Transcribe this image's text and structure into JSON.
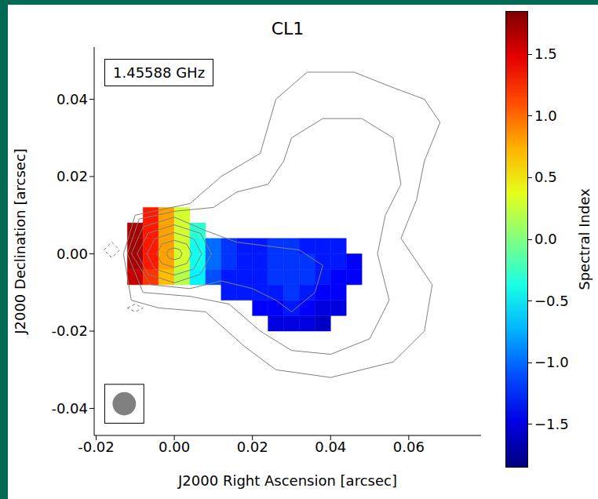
{
  "chart_data": {
    "type": "heatmap",
    "title": "CL1",
    "annotation": "1.45588 GHz",
    "x_label": "J2000 Right Ascension [arcsec]",
    "y_label": "J2000 Declination [arcsec]",
    "xlim": [
      -0.0205,
      0.0785
    ],
    "ylim": [
      -0.047,
      0.0535
    ],
    "xticks": [
      {
        "value": -0.02,
        "label": "-0.02"
      },
      {
        "value": 0,
        "label": "0.00"
      },
      {
        "value": 0.02,
        "label": "0.02"
      },
      {
        "value": 0.04,
        "label": "0.04"
      },
      {
        "value": 0.06,
        "label": "0.06"
      }
    ],
    "yticks": [
      {
        "value": -0.04,
        "label": "-0.04"
      },
      {
        "value": -0.02,
        "label": "-0.02"
      },
      {
        "value": 0,
        "label": "0.00"
      },
      {
        "value": 0.02,
        "label": "0.02"
      },
      {
        "value": 0.04,
        "label": "0.04"
      }
    ],
    "x_edges": [
      -0.012,
      -0.008,
      -0.004,
      0,
      0.004,
      0.008,
      0.012,
      0.016,
      0.02,
      0.024,
      0.028,
      0.032,
      0.036,
      0.04,
      0.044,
      0.048
    ],
    "y_edges": [
      -0.02,
      -0.016,
      -0.012,
      -0.008,
      -0.004,
      0,
      0.004,
      0.008,
      0.012
    ],
    "cells": [
      [
        null,
        null,
        null,
        null,
        null,
        null,
        null,
        null,
        null,
        -1.5,
        -1.5,
        -1.5,
        -1.6,
        null,
        null
      ],
      [
        null,
        null,
        null,
        null,
        null,
        null,
        null,
        null,
        -1.4,
        -1.4,
        -1.3,
        -1.4,
        -1.5,
        -1.5,
        null
      ],
      [
        null,
        null,
        null,
        null,
        null,
        null,
        -1.3,
        -1.3,
        -1.3,
        -1.3,
        -1.2,
        -1.3,
        -1.4,
        -1.4,
        null
      ],
      [
        1.6,
        1.2,
        0.7,
        0.2,
        -0.5,
        -1.1,
        -1.3,
        -1.3,
        -1.3,
        -1.2,
        -1.2,
        -1.2,
        -1.3,
        -1.4,
        -1.4
      ],
      [
        1.7,
        1.3,
        0.8,
        0.3,
        -0.4,
        -1.0,
        -1.2,
        -1.3,
        -1.3,
        -1.2,
        -1.2,
        -1.2,
        -1.3,
        -1.3,
        -1.4
      ],
      [
        1.7,
        1.3,
        0.8,
        0.3,
        -0.4,
        -1.0,
        -1.2,
        -1.3,
        -1.3,
        -1.2,
        -1.2,
        -1.3,
        -1.3,
        -1.3,
        null
      ],
      [
        1.7,
        1.3,
        0.8,
        0.3,
        -0.3,
        null,
        null,
        null,
        null,
        null,
        null,
        null,
        null,
        null,
        null
      ],
      [
        null,
        1.3,
        0.8,
        0.3,
        null,
        null,
        null,
        null,
        null,
        null,
        null,
        null,
        null,
        null,
        null
      ]
    ],
    "colorbar": {
      "label": "Spectral Index",
      "range": [
        -1.85,
        1.85
      ],
      "ticks": [
        {
          "value": -1.5,
          "label": "−1.5"
        },
        {
          "value": -1.0,
          "label": "−1.0"
        },
        {
          "value": -0.5,
          "label": "−0.5"
        },
        {
          "value": 0,
          "label": "0.0"
        },
        {
          "value": 0.5,
          "label": "0.5"
        },
        {
          "value": 1.0,
          "label": "1.0"
        },
        {
          "value": 1.5,
          "label": "1.5"
        }
      ]
    },
    "contours": [
      {
        "line_style": "solid",
        "points": [
          [
            0.002,
            0
          ],
          [
            0.0014,
            0.0011
          ],
          [
            0,
            0.0015
          ],
          [
            -0.0014,
            0.0011
          ],
          [
            -0.002,
            0
          ],
          [
            -0.0014,
            -0.0011
          ],
          [
            0,
            -0.0015
          ],
          [
            0.0014,
            -0.0011
          ],
          [
            0.002,
            0
          ]
        ]
      },
      {
        "line_style": "solid",
        "points": [
          [
            0.0045,
            0
          ],
          [
            0.0032,
            0.0025
          ],
          [
            0,
            0.0035
          ],
          [
            -0.0032,
            0.0025
          ],
          [
            -0.0045,
            0
          ],
          [
            -0.0032,
            -0.0025
          ],
          [
            0,
            -0.0035
          ],
          [
            0.0032,
            -0.0025
          ],
          [
            0.0045,
            0
          ]
        ]
      },
      {
        "line_style": "solid",
        "points": [
          [
            0.007,
            0
          ],
          [
            0.005,
            0.0039
          ],
          [
            0,
            0.0055
          ],
          [
            -0.005,
            0.0039
          ],
          [
            -0.007,
            0
          ],
          [
            -0.005,
            -0.0039
          ],
          [
            0,
            -0.0055
          ],
          [
            0.005,
            -0.0039
          ],
          [
            0.007,
            0
          ]
        ]
      },
      {
        "line_style": "solid",
        "points": [
          [
            0.0095,
            0
          ],
          [
            0.0067,
            0.0053
          ],
          [
            0,
            0.0075
          ],
          [
            -0.0067,
            0.0053
          ],
          [
            -0.0095,
            0
          ],
          [
            -0.0067,
            -0.0053
          ],
          [
            0,
            -0.0075
          ],
          [
            0.0067,
            -0.0053
          ],
          [
            0.0095,
            0
          ]
        ]
      },
      {
        "line_style": "solid",
        "points": [
          [
            -0.011,
            0
          ],
          [
            -0.008,
            0.007
          ],
          [
            0,
            0.0095
          ],
          [
            0.008,
            0.006
          ],
          [
            0.016,
            0.003
          ],
          [
            0.024,
            0.002
          ],
          [
            0.032,
            0.001
          ],
          [
            0.038,
            -0.003
          ],
          [
            0.036,
            -0.01
          ],
          [
            0.03,
            -0.015
          ],
          [
            0.026,
            -0.012
          ],
          [
            0.02,
            -0.009
          ],
          [
            0.012,
            -0.007
          ],
          [
            0.004,
            -0.009
          ],
          [
            -0.006,
            -0.008
          ],
          [
            -0.011,
            0
          ]
        ]
      },
      {
        "line_style": "solid",
        "points": [
          [
            -0.012,
            0
          ],
          [
            -0.009,
            0.009
          ],
          [
            0,
            0.011
          ],
          [
            0.01,
            0.012
          ],
          [
            0.016,
            0.016
          ],
          [
            0.024,
            0.018
          ],
          [
            0.028,
            0.024
          ],
          [
            0.03,
            0.03
          ],
          [
            0.038,
            0.035
          ],
          [
            0.048,
            0.035
          ],
          [
            0.056,
            0.03
          ],
          [
            0.058,
            0.018
          ],
          [
            0.054,
            0.01
          ],
          [
            0.052,
            0
          ],
          [
            0.055,
            -0.012
          ],
          [
            0.05,
            -0.022
          ],
          [
            0.04,
            -0.026
          ],
          [
            0.03,
            -0.025
          ],
          [
            0.022,
            -0.02
          ],
          [
            0.014,
            -0.013
          ],
          [
            0.004,
            -0.011
          ],
          [
            -0.008,
            -0.01
          ],
          [
            -0.012,
            0
          ]
        ]
      },
      {
        "line_style": "solid",
        "points": [
          [
            -0.013,
            0
          ],
          [
            -0.01,
            0.01
          ],
          [
            0.004,
            0.013
          ],
          [
            0.012,
            0.02
          ],
          [
            0.022,
            0.026
          ],
          [
            0.026,
            0.04
          ],
          [
            0.034,
            0.047
          ],
          [
            0.046,
            0.047
          ],
          [
            0.056,
            0.043
          ],
          [
            0.064,
            0.04
          ],
          [
            0.068,
            0.034
          ],
          [
            0.064,
            0.024
          ],
          [
            0.062,
            0.014
          ],
          [
            0.058,
            0.004
          ],
          [
            0.066,
            -0.008
          ],
          [
            0.064,
            -0.02
          ],
          [
            0.056,
            -0.028
          ],
          [
            0.04,
            -0.032
          ],
          [
            0.026,
            -0.03
          ],
          [
            0.018,
            -0.024
          ],
          [
            0.008,
            -0.015
          ],
          [
            -0.004,
            -0.014
          ],
          [
            -0.011,
            -0.012
          ],
          [
            -0.013,
            0
          ]
        ]
      },
      {
        "line_style": "dashed",
        "points": [
          [
            -0.018,
            0.001
          ],
          [
            -0.016,
            0.003
          ],
          [
            -0.014,
            0.001
          ],
          [
            -0.016,
            -0.001
          ],
          [
            -0.018,
            0.001
          ]
        ]
      },
      {
        "line_style": "dashed",
        "points": [
          [
            -0.012,
            -0.014
          ],
          [
            -0.01,
            -0.013
          ],
          [
            -0.008,
            -0.014
          ],
          [
            -0.01,
            -0.015
          ],
          [
            -0.012,
            -0.014
          ]
        ]
      }
    ],
    "beam": {
      "x": -0.0128,
      "y": -0.0388,
      "width": 0.006,
      "height": 0.006
    }
  }
}
